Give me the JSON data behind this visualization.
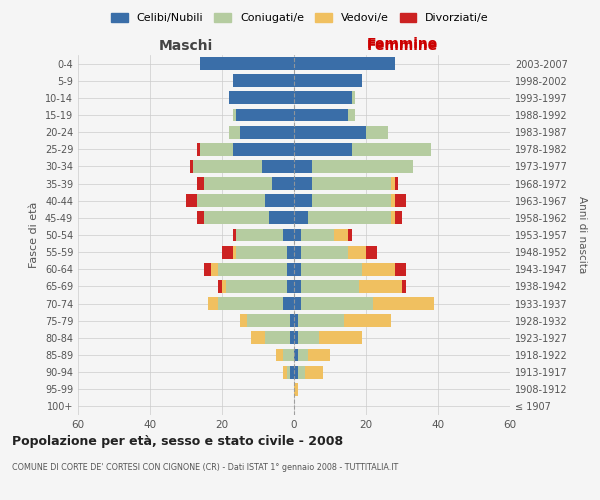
{
  "age_groups": [
    "100+",
    "95-99",
    "90-94",
    "85-89",
    "80-84",
    "75-79",
    "70-74",
    "65-69",
    "60-64",
    "55-59",
    "50-54",
    "45-49",
    "40-44",
    "35-39",
    "30-34",
    "25-29",
    "20-24",
    "15-19",
    "10-14",
    "5-9",
    "0-4"
  ],
  "birth_years": [
    "≤ 1907",
    "1908-1912",
    "1913-1917",
    "1918-1922",
    "1923-1927",
    "1928-1932",
    "1933-1937",
    "1938-1942",
    "1943-1947",
    "1948-1952",
    "1953-1957",
    "1958-1962",
    "1963-1967",
    "1968-1972",
    "1973-1977",
    "1978-1982",
    "1983-1987",
    "1988-1992",
    "1993-1997",
    "1998-2002",
    "2003-2007"
  ],
  "colors": {
    "celibe": "#3a6ea8",
    "coniugato": "#b5cca0",
    "vedovo": "#f0c060",
    "divorziato": "#cc2222"
  },
  "males": {
    "celibe": [
      0,
      0,
      1,
      0,
      1,
      1,
      3,
      2,
      2,
      2,
      3,
      7,
      8,
      6,
      9,
      17,
      15,
      16,
      18,
      17,
      26
    ],
    "coniugato": [
      0,
      0,
      1,
      3,
      7,
      12,
      18,
      17,
      19,
      14,
      13,
      18,
      19,
      19,
      19,
      9,
      3,
      1,
      0,
      0,
      0
    ],
    "vedovo": [
      0,
      0,
      1,
      2,
      4,
      2,
      3,
      1,
      2,
      1,
      0,
      0,
      0,
      0,
      0,
      0,
      0,
      0,
      0,
      0,
      0
    ],
    "divorziato": [
      0,
      0,
      0,
      0,
      0,
      0,
      0,
      1,
      2,
      3,
      1,
      2,
      3,
      2,
      1,
      1,
      0,
      0,
      0,
      0,
      0
    ]
  },
  "females": {
    "nubile": [
      0,
      0,
      1,
      1,
      1,
      1,
      2,
      2,
      2,
      2,
      2,
      4,
      5,
      5,
      5,
      16,
      20,
      15,
      16,
      19,
      28
    ],
    "coniugata": [
      0,
      0,
      2,
      3,
      6,
      13,
      20,
      16,
      17,
      13,
      9,
      23,
      22,
      22,
      28,
      22,
      6,
      2,
      1,
      0,
      0
    ],
    "vedova": [
      0,
      1,
      5,
      6,
      12,
      13,
      17,
      12,
      9,
      5,
      4,
      1,
      1,
      1,
      0,
      0,
      0,
      0,
      0,
      0,
      0
    ],
    "divorziata": [
      0,
      0,
      0,
      0,
      0,
      0,
      0,
      1,
      3,
      3,
      1,
      2,
      3,
      1,
      0,
      0,
      0,
      0,
      0,
      0,
      0
    ]
  },
  "xlim": 60,
  "title_main": "Popolazione per età, sesso e stato civile - 2008",
  "title_sub": "COMUNE DI CORTE DE' CORTESI CON CIGNONE (CR) - Dati ISTAT 1° gennaio 2008 - TUTTITALIA.IT",
  "ylabel_left": "Fasce di età",
  "ylabel_right": "Anni di nascita",
  "xlabel_left": "Maschi",
  "xlabel_right": "Femmine",
  "bg_color": "#f5f5f5",
  "grid_color": "#cccccc"
}
